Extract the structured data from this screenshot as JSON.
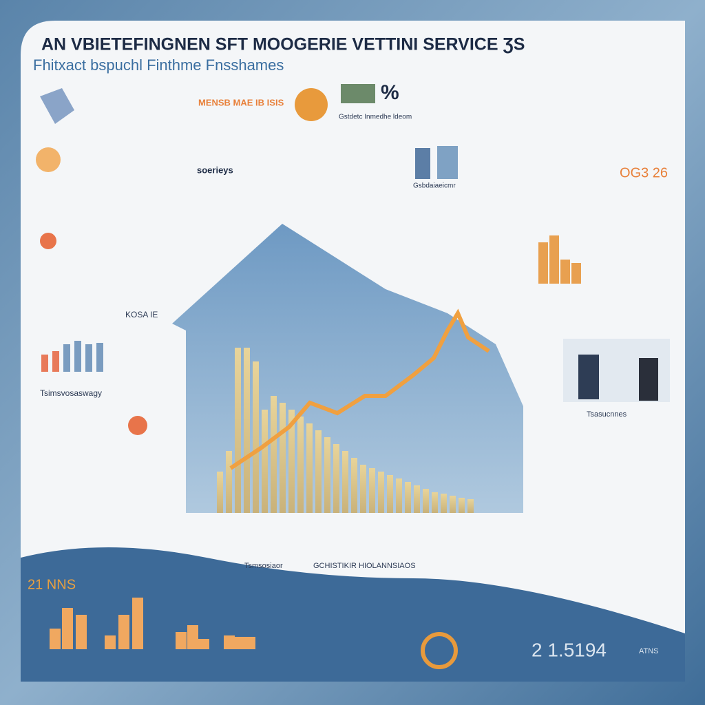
{
  "header": {
    "title": "AN VBIETEFINGNEN SFT MOOGERIE VETTINI SERVICE ƷS",
    "subtitle": "Fhitxact bspuchl Finthme Fnsshames"
  },
  "labels": [
    {
      "text": "MENSB MAE IB ISIS"
    },
    {
      "text": "%"
    },
    {
      "text": "Gstdetc Inmedhe ldeom"
    },
    {
      "text": "soerieys"
    },
    {
      "text": "OG3 26"
    },
    {
      "text": "Gsbdaiaeicmr"
    },
    {
      "text": "KOSA IE"
    },
    {
      "text": "Tsimsvosaswagy"
    },
    {
      "text": "Tsasucnnes"
    },
    {
      "text": "Tsmsosiaor"
    },
    {
      "text": "GCHISTIKIR HIOLANNSIAOS"
    },
    {
      "text": "21 NNS"
    },
    {
      "text": "2 1.5194"
    },
    {
      "text": "ATNS"
    }
  ]
}
